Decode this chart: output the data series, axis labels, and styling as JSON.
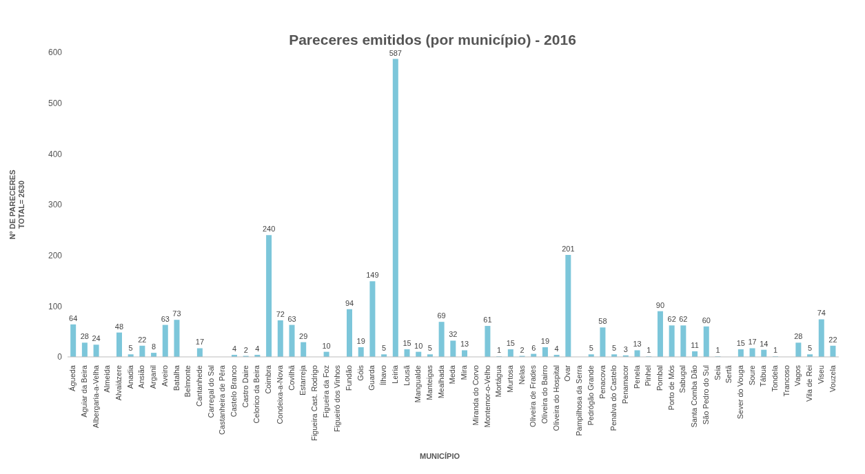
{
  "chart_data": {
    "type": "bar",
    "title": "Pareceres emitidos (por município) - 2016",
    "xlabel": "MUNICÍPIO",
    "ylabel": "Nº DE PARECERES\nTOTAL= 2630",
    "categories": [
      "Águeda",
      "Aguiar da Beira",
      "Albergaria-a-Velha",
      "Almeida",
      "Alvaiázere",
      "Anadia",
      "Ansião",
      "Arganil",
      "Aveiro",
      "Batalha",
      "Belmonte",
      "Cantanhede",
      "Carregal do Sal",
      "Castanheira de Pêra",
      "Castelo Branco",
      "Castro Daire",
      "Celorico da Beira",
      "Coimbra",
      "Condeixa-a-Nova",
      "Covilhã",
      "Estarreja",
      "Figueira Cast. Rodrigo",
      "Figueira da Foz",
      "Figueiró dos Vinhos",
      "Fundão",
      "Góis",
      "Guarda",
      "Ílhavo",
      "Leiria",
      "Lousã",
      "Mangualde",
      "Manteigas",
      "Mealhada",
      "Meda",
      "Mira",
      "Miranda do Corvo",
      "Montemor-o-Velho",
      "Mortágua",
      "Murtosa",
      "Nelas",
      "Oliveira de Frades",
      "Oliveira do Bairro",
      "Oliveira do Hospital",
      "Ovar",
      "Pampilhosa da Serra",
      "Pedrógão Grande",
      "Penacova",
      "Penalva do Castelo",
      "Penamacor",
      "Penela",
      "Pinhel",
      "Pombal",
      "Porto de Mós",
      "Sabugal",
      "Santa Comba Dão",
      "São Pedro do Sul",
      "Seia",
      "Sertã",
      "Sever do Vouga",
      "Soure",
      "Tábua",
      "Tondela",
      "Trancoso",
      "Vagos",
      "Vila de Rei",
      "Viseu",
      "Vouzela"
    ],
    "values": [
      64,
      28,
      24,
      null,
      48,
      5,
      22,
      8,
      63,
      73,
      null,
      17,
      null,
      null,
      4,
      2,
      4,
      240,
      72,
      63,
      29,
      null,
      10,
      null,
      94,
      19,
      149,
      5,
      587,
      15,
      10,
      5,
      69,
      32,
      13,
      null,
      61,
      1,
      15,
      2,
      6,
      19,
      4,
      201,
      null,
      5,
      58,
      5,
      3,
      13,
      1,
      90,
      62,
      62,
      11,
      60,
      1,
      null,
      15,
      17,
      14,
      1,
      null,
      28,
      5,
      74,
      22
    ],
    "color": "#7cc6da",
    "ylim": [
      0,
      600
    ],
    "yticks": [
      0,
      100,
      200,
      300,
      400,
      500,
      600
    ],
    "grid": false,
    "data_labels": true
  }
}
